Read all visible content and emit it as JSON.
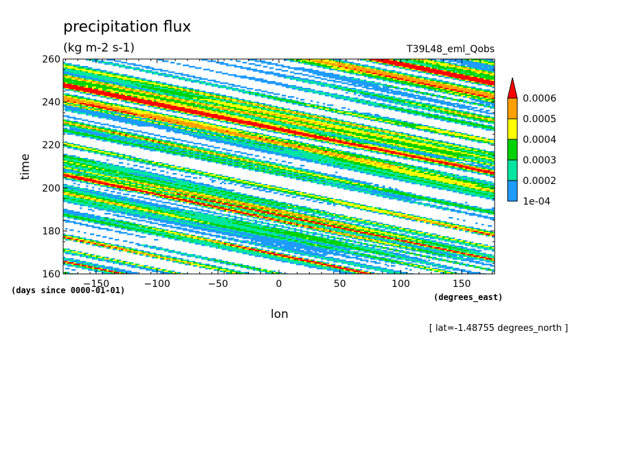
{
  "header": {
    "title": "precipitation flux",
    "units": "(kg m-2 s-1)",
    "experiment": "T39L48_eml_Qobs"
  },
  "footnote": "[ lat=-1.48755 degrees_north ]",
  "chart_data": {
    "type": "heatmap",
    "title": "precipitation flux",
    "units": "(kg m-2 s-1)",
    "xlabel": "lon",
    "ylabel": "time",
    "x_units": "(degrees_east)",
    "y_units": "(days since 0000-01-01)",
    "xlim": [
      -177,
      177
    ],
    "ylim": [
      160,
      260
    ],
    "x_ticks": [
      -150,
      -100,
      -50,
      0,
      50,
      100,
      150
    ],
    "x_tick_labels": [
      "−150",
      "−100",
      "−50",
      "0",
      "50",
      "100",
      "150"
    ],
    "y_ticks": [
      160,
      180,
      200,
      220,
      240,
      260
    ],
    "y_tick_labels": [
      "160",
      "180",
      "200",
      "220",
      "240",
      "260"
    ],
    "grid": false,
    "colorbar": {
      "placement": "right",
      "levels": [
        0.0001,
        0.0002,
        0.0003,
        0.0004,
        0.0005,
        0.0006
      ],
      "level_labels": [
        "1e-04",
        "0.0002",
        "0.0003",
        "0.0004",
        "0.0005",
        "0.0006"
      ],
      "colors": [
        "#1e9bff",
        "#00e6a0",
        "#00d200",
        "#ffff00",
        "#ffa000",
        "#ff0000"
      ],
      "extend": "max"
    },
    "pattern": {
      "description_free_params": true,
      "propagation_deg_per_day": -8.5,
      "noise_seed": 7
    }
  }
}
